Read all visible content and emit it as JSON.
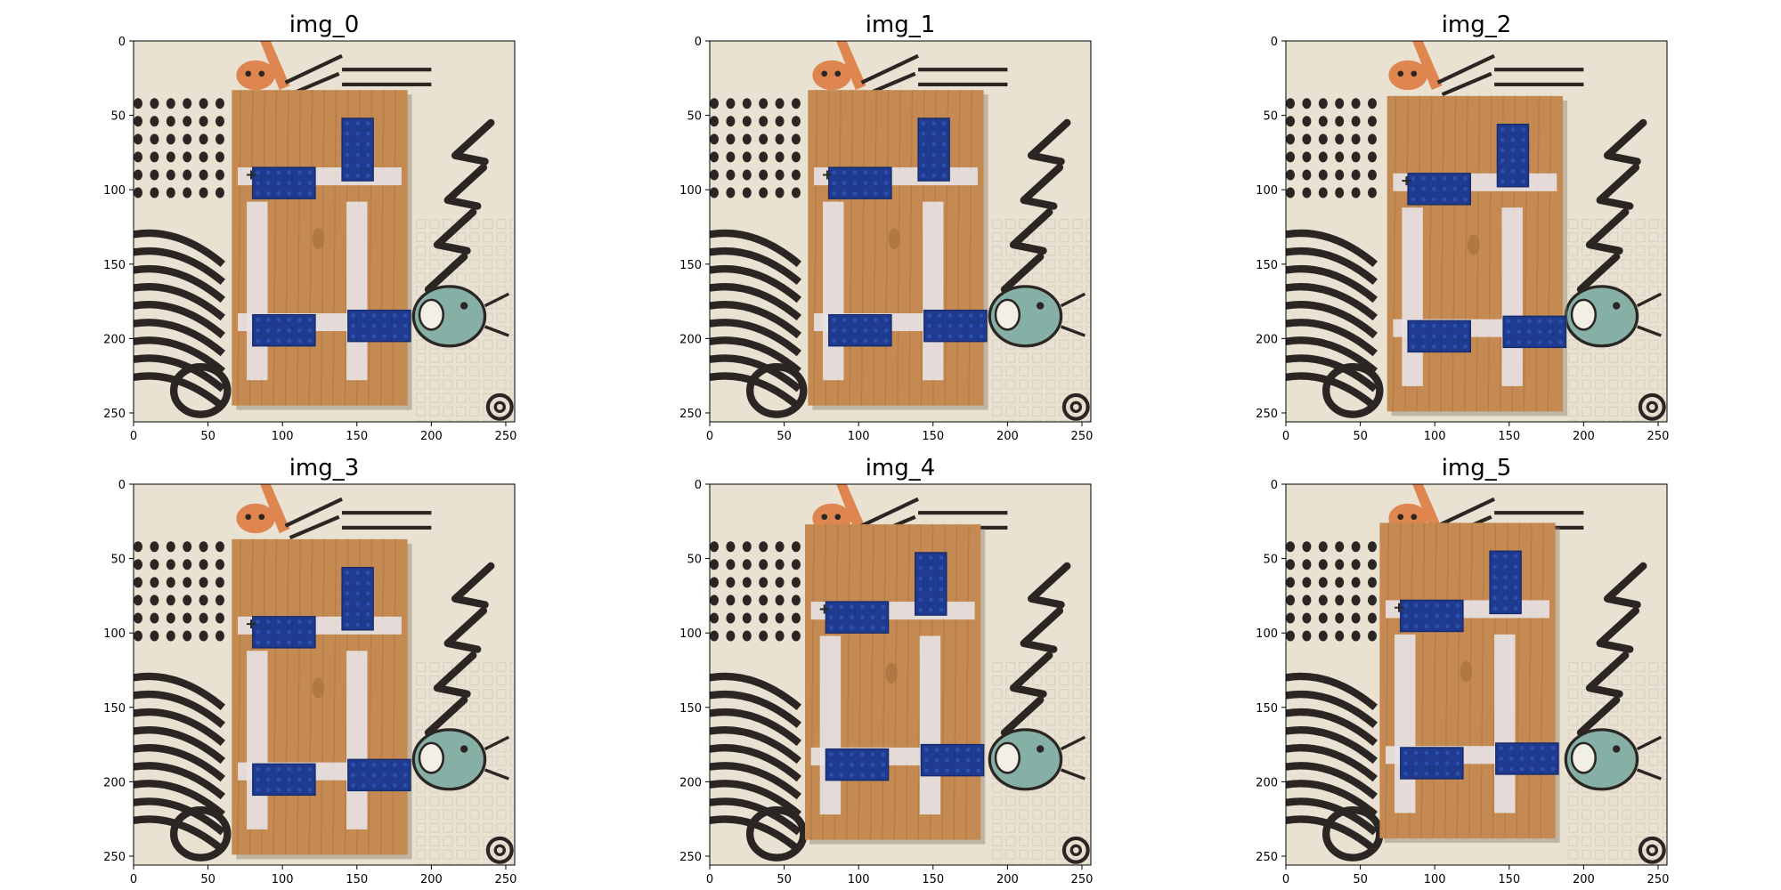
{
  "panels": [
    {
      "title": "img_0",
      "board_shift": [
        0,
        0
      ]
    },
    {
      "title": "img_1",
      "board_shift": [
        0,
        0
      ]
    },
    {
      "title": "img_2",
      "board_shift": [
        2,
        4
      ]
    },
    {
      "title": "img_3",
      "board_shift": [
        0,
        4
      ]
    },
    {
      "title": "img_4",
      "board_shift": [
        -2,
        -6
      ]
    },
    {
      "title": "img_5",
      "board_shift": [
        -3,
        -7
      ]
    }
  ],
  "axes": {
    "xticks": [
      0,
      50,
      100,
      150,
      200,
      250
    ],
    "yticks": [
      0,
      50,
      100,
      150,
      200,
      250
    ],
    "xlim": [
      0,
      256
    ],
    "ylim": [
      256,
      0
    ]
  },
  "colors": {
    "background": "#e9e2d2",
    "wood": "#c48a52",
    "wood_dark": "#a9703d",
    "lego_blue": "#1f3b8f",
    "tape": "#e8e2e6",
    "ink": "#2b2623",
    "orange_figure": "#de8550",
    "teal_figure": "#86b0a6"
  }
}
